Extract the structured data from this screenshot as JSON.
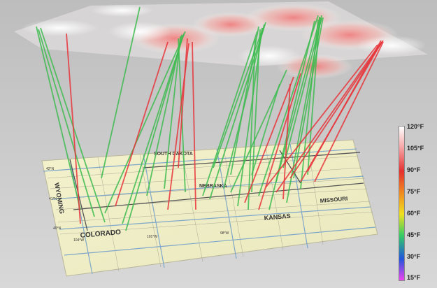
{
  "map": {
    "state_labels": [
      {
        "key": "wyoming",
        "text": "WYOMING"
      },
      {
        "key": "south-dakota",
        "text": "SOUTH DAKOTA"
      },
      {
        "key": "nebraska",
        "text": "NEBRASKA"
      },
      {
        "key": "colorado",
        "text": "COLORADO"
      },
      {
        "key": "kansas",
        "text": "KANSAS"
      },
      {
        "key": "missouri",
        "text": "MISSOURI"
      }
    ],
    "grid_labels": [
      {
        "key": "lat-42",
        "text": "42°N"
      },
      {
        "key": "lat-41",
        "text": "41°N"
      },
      {
        "key": "lat-40",
        "text": "40°N"
      },
      {
        "key": "lon-104",
        "text": "104°W"
      },
      {
        "key": "lon-101",
        "text": "101°W"
      },
      {
        "key": "lon-98",
        "text": "98°W"
      }
    ],
    "colors": {
      "map_base": "#f0efc6",
      "grid": "#7fa7c9",
      "county_border": "#9a9a8a",
      "trajectory_cool": "#3dbb4f",
      "trajectory_hot": "#e8343a",
      "background": "#cfcfcf"
    }
  },
  "legend": {
    "labels": [
      "120°F",
      "105°F",
      "90°F",
      "75°F",
      "60°F",
      "45°F",
      "30°F",
      "15°F"
    ],
    "colors": [
      "#ffffff",
      "#f7a3a3",
      "#e53030",
      "#f08a1e",
      "#f0e020",
      "#33cc66",
      "#2255dd",
      "#ee44ee"
    ]
  }
}
